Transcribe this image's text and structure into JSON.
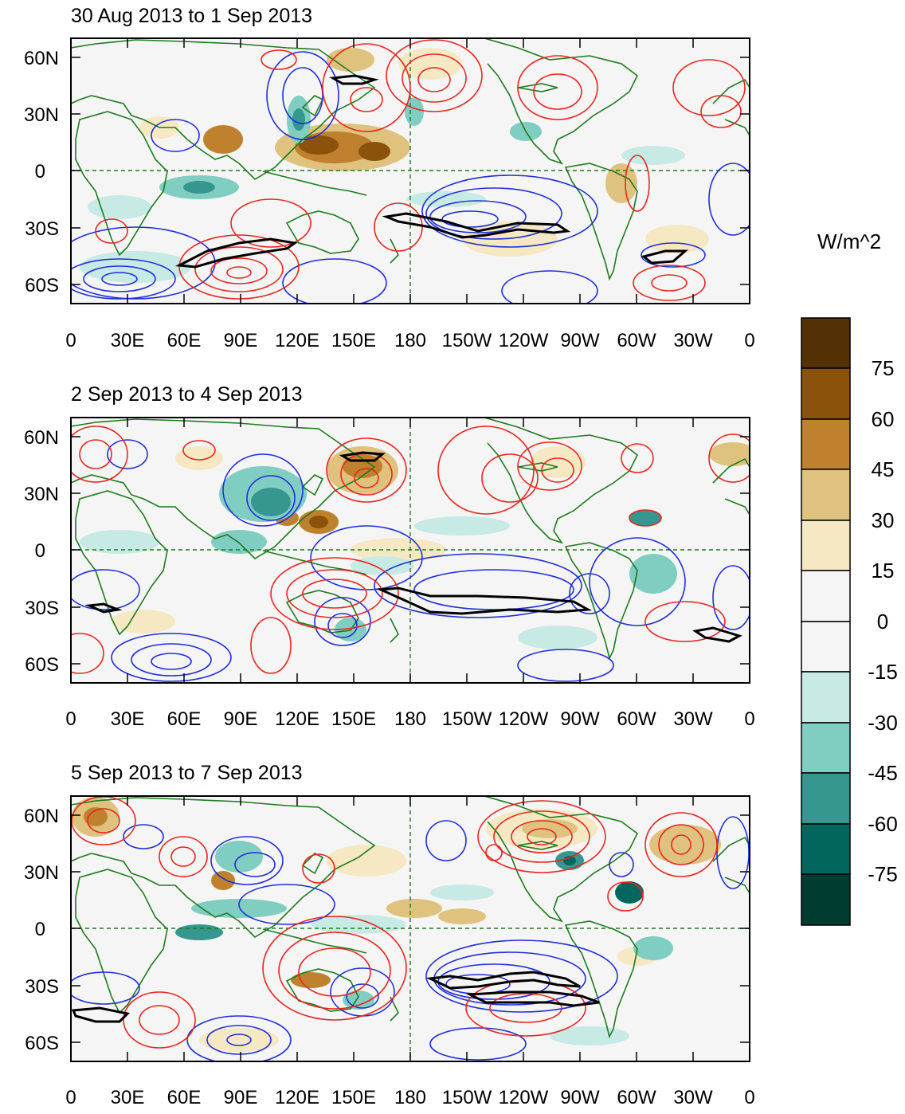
{
  "panels": [
    {
      "title": "30 Aug 2013 to 1 Sep 2013"
    },
    {
      "title": "2 Sep 2013 to 4 Sep 2013"
    },
    {
      "title": "5 Sep 2013 to 7 Sep 2013"
    }
  ],
  "axes": {
    "lat_labels": [
      "60N",
      "30N",
      "0",
      "30S",
      "60S"
    ],
    "lon_labels": [
      "0",
      "30E",
      "60E",
      "90E",
      "120E",
      "150E",
      "180",
      "150W",
      "120W",
      "90W",
      "60W",
      "30W",
      "0"
    ]
  },
  "colorbar": {
    "units": "W/m^2",
    "labels": [
      "75",
      "60",
      "45",
      "30",
      "15",
      "0",
      "-15",
      "-30",
      "-45",
      "-60",
      "-75"
    ],
    "colors": [
      "#543005",
      "#8c510a",
      "#bf812d",
      "#dfc27d",
      "#f6e8c3",
      "#f5f5f5",
      "#f5f5f5",
      "#c7eae5",
      "#80cdc1",
      "#35978f",
      "#01665e",
      "#003c30"
    ]
  },
  "style": {
    "coast": "#1e7a1e",
    "positive_contour": "#e8261e",
    "negative_contour": "#1f2fd8",
    "zero_contour": "#000000"
  }
}
